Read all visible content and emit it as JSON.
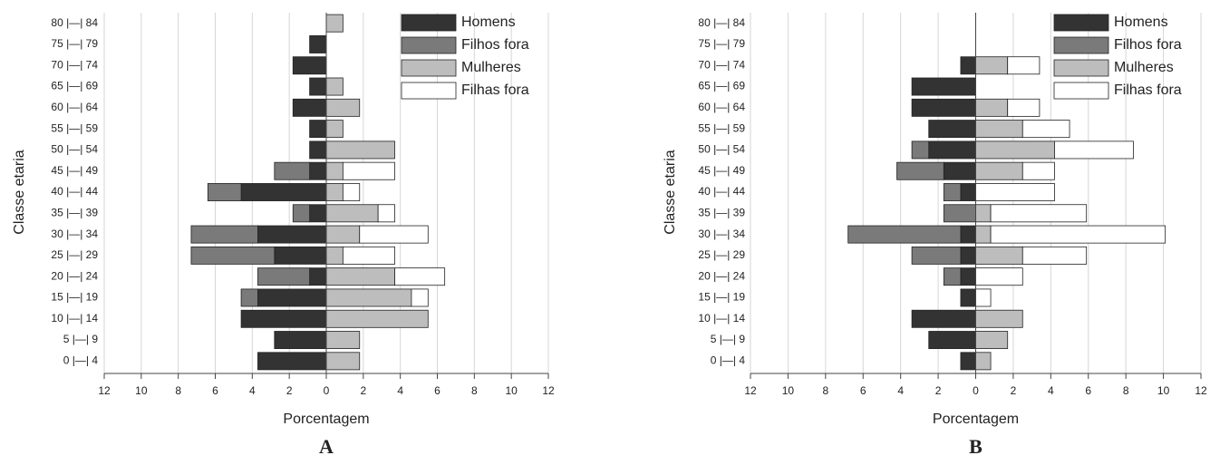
{
  "chart_data": [
    {
      "type": "bar",
      "orientation": "horizontal",
      "label": "A",
      "xlabel": "Porcentagem",
      "ylabel": "Classe etaria",
      "categories": [
        "0 |—| 4",
        "5 |—| 9",
        "10 |—| 14",
        "15 |—| 19",
        "20 |—| 24",
        "25 |—| 29",
        "30 |—| 34",
        "35 |—| 39",
        "40 |—| 44",
        "45 |—| 49",
        "50 |—| 54",
        "55 |—| 59",
        "60 |—| 64",
        "65 |—| 69",
        "70 |—| 74",
        "75 |—| 79",
        "80 |—| 84"
      ],
      "series": [
        {
          "name": "Homens",
          "color": "#333333",
          "values": [
            -3.7,
            -2.8,
            -4.6,
            -3.7,
            -0.9,
            -2.8,
            -3.7,
            -0.9,
            -4.6,
            -0.9,
            -0.9,
            -0.9,
            -1.8,
            -0.9,
            -1.8,
            -0.9,
            0
          ]
        },
        {
          "name": "Filhos fora",
          "color": "#7a7a7a",
          "values": [
            0,
            0,
            0,
            -0.9,
            -2.8,
            -4.5,
            -3.6,
            -0.9,
            -1.8,
            -1.9,
            0,
            0,
            0,
            0,
            0,
            0,
            0
          ]
        },
        {
          "name": "Mulheres",
          "color": "#bdbdbd",
          "values": [
            1.8,
            1.8,
            5.5,
            4.6,
            3.7,
            0.9,
            1.8,
            2.8,
            0.9,
            0.9,
            3.7,
            0.9,
            1.8,
            0.9,
            0,
            0,
            0.9
          ]
        },
        {
          "name": "Filhas fora",
          "color": "#ffffff",
          "values": [
            0,
            0,
            0,
            0.9,
            2.7,
            2.8,
            3.7,
            0.9,
            0.9,
            2.8,
            0,
            0,
            0,
            0,
            0,
            0,
            0
          ]
        }
      ],
      "xlim": [
        -12,
        12
      ],
      "xticks": [
        {
          "value": -12,
          "label": "12"
        },
        {
          "value": -10,
          "label": "10"
        },
        {
          "value": -8,
          "label": "8"
        },
        {
          "value": -6,
          "label": "6"
        },
        {
          "value": -4,
          "label": "4"
        },
        {
          "value": -2,
          "label": "2"
        },
        0,
        2,
        4,
        6,
        8,
        10,
        12
      ],
      "grid": true,
      "legend": "upper right"
    },
    {
      "type": "bar",
      "orientation": "horizontal",
      "label": "B",
      "xlabel": "Porcentagem",
      "ylabel": "Classe etaria",
      "categories": [
        "0 |—| 4",
        "5 |—| 9",
        "10 |—| 14",
        "15 |—| 19",
        "20 |—| 24",
        "25 |—| 29",
        "30 |—| 34",
        "35 |—| 39",
        "40 |—| 44",
        "45 |—| 49",
        "50 |—| 54",
        "55 |—| 59",
        "60 |—| 64",
        "65 |—| 69",
        "70 |—| 74",
        "75 |—| 79",
        "80 |—| 84"
      ],
      "series": [
        {
          "name": "Homens",
          "color": "#333333",
          "values": [
            -0.8,
            -2.5,
            -3.4,
            -0.8,
            -0.8,
            -0.8,
            -0.8,
            0,
            -0.8,
            -1.7,
            -2.5,
            -2.5,
            -3.4,
            -3.4,
            -0.8,
            0,
            0
          ]
        },
        {
          "name": "Filhos fora",
          "color": "#7a7a7a",
          "values": [
            0,
            0,
            0,
            0,
            -0.9,
            -2.6,
            -6.0,
            -1.7,
            -0.9,
            -2.5,
            -0.9,
            0,
            0,
            0,
            0,
            0,
            0
          ]
        },
        {
          "name": "Mulheres",
          "color": "#bdbdbd",
          "values": [
            0.8,
            1.7,
            2.5,
            0,
            0,
            2.5,
            0.8,
            0.8,
            0,
            2.5,
            4.2,
            2.5,
            1.7,
            0,
            1.7,
            0,
            0
          ]
        },
        {
          "name": "Filhas fora",
          "color": "#ffffff",
          "values": [
            0,
            0,
            0,
            0.8,
            2.5,
            3.4,
            9.3,
            5.1,
            4.2,
            1.7,
            4.2,
            2.5,
            1.7,
            0,
            1.7,
            0,
            0
          ]
        }
      ],
      "xlim": [
        -12,
        12
      ],
      "xticks": [
        {
          "value": -12,
          "label": "12"
        },
        {
          "value": -10,
          "label": "10"
        },
        {
          "value": -8,
          "label": "8"
        },
        {
          "value": -6,
          "label": "6"
        },
        {
          "value": -4,
          "label": "4"
        },
        {
          "value": -2,
          "label": "2"
        },
        0,
        2,
        4,
        6,
        8,
        10,
        12
      ],
      "grid": true,
      "legend": "upper right"
    }
  ]
}
